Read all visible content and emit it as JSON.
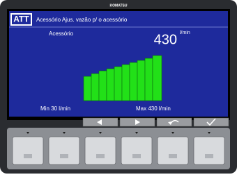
{
  "brand": "KOMATSU",
  "screen": {
    "mode_badge": "ATT",
    "header": "Acessório Ajus. vazão p/ o acessório",
    "item_label": "Acessório",
    "value": "430",
    "unit": "l/min",
    "min_label": "Min 30 l/min",
    "max_label": "Max 430 l/min"
  }
}
